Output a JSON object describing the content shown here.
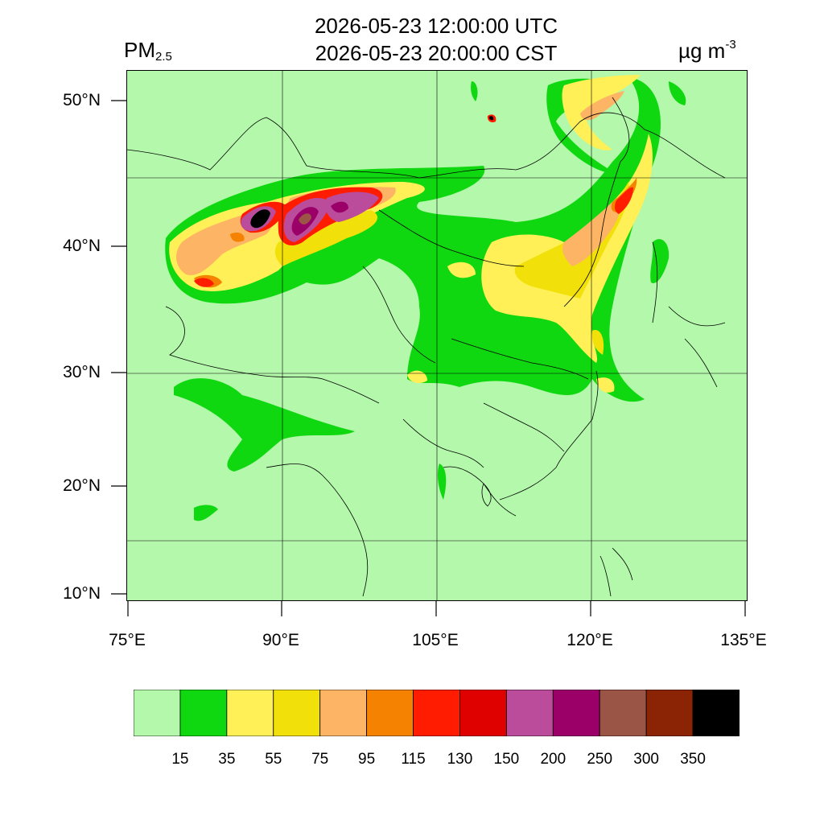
{
  "title": {
    "utc": "2026-05-23 12:00:00 UTC",
    "cst": "2026-05-23 20:00:00 CST"
  },
  "variable": {
    "base": "PM",
    "sub": "2.5"
  },
  "unit": {
    "base": "µg m",
    "sup": "-3"
  },
  "axes": {
    "lat_ticks": [
      "50°N",
      "40°N",
      "30°N",
      "20°N",
      "10°N"
    ],
    "lon_ticks": [
      "75°E",
      "90°E",
      "105°E",
      "120°E",
      "135°E"
    ]
  },
  "colorbar": {
    "colors": [
      "#b3f8ab",
      "#10d810",
      "#fef056",
      "#f2e00a",
      "#fdb464",
      "#f58200",
      "#ff1c00",
      "#df0000",
      "#bb4c9c",
      "#9b0069",
      "#9b5546",
      "#8b2404",
      "#000000"
    ],
    "labels": [
      "15",
      "35",
      "55",
      "75",
      "95",
      "115",
      "130",
      "150",
      "200",
      "250",
      "300",
      "350"
    ]
  },
  "colors": {
    "background": "#b3f8ab",
    "border": "#000000"
  }
}
